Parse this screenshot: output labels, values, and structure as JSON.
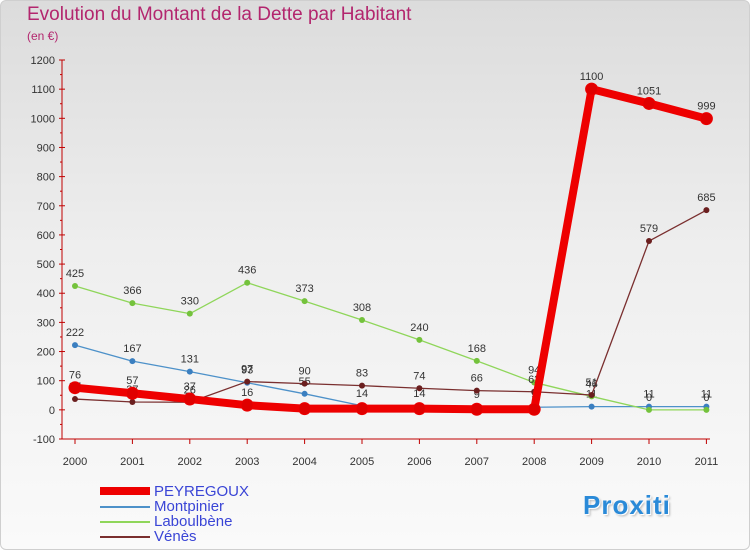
{
  "title": "Evolution du Montant de la Dette par Habitant",
  "subtitle": "(en €)",
  "logo": "Proxiti",
  "chart_data": {
    "type": "line",
    "title": "Evolution du Montant de la Dette par Habitant",
    "subtitle": "(en €)",
    "categories": [
      "2000",
      "2001",
      "2002",
      "2003",
      "2004",
      "2005",
      "2006",
      "2007",
      "2008",
      "2009",
      "2010",
      "2011"
    ],
    "ylim": [
      -100,
      1200
    ],
    "yticks": [
      -100,
      0,
      100,
      200,
      300,
      400,
      500,
      600,
      700,
      800,
      900,
      1000,
      1100,
      1200
    ],
    "grid": false,
    "legend_position": "bottom-left",
    "series": [
      {
        "name": "Montpinier",
        "color": "#4d91c9",
        "dot": "#3b7fc0",
        "width": 1.3,
        "values": [
          222,
          167,
          131,
          93,
          55,
          14,
          14,
          9,
          9,
          11,
          11,
          11
        ],
        "labels": [
          "222",
          "167",
          "131",
          "93",
          "55",
          "14",
          "14",
          "9",
          "9",
          "11",
          "11",
          "11"
        ]
      },
      {
        "name": "Laboulbène",
        "color": "#8fd65a",
        "dot": "#74c23c",
        "width": 1.3,
        "values": [
          425,
          366,
          330,
          436,
          373,
          308,
          240,
          168,
          94,
          46,
          0,
          0
        ],
        "labels": [
          "425",
          "366",
          "330",
          "436",
          "373",
          "308",
          "240",
          "168",
          "94",
          "46",
          "0",
          "0"
        ]
      },
      {
        "name": "Vénès",
        "color": "#7a2f2f",
        "dot": "#6b1f1f",
        "width": 1.3,
        "values": [
          37,
          27,
          26,
          97,
          90,
          83,
          74,
          66,
          62,
          51,
          579,
          685
        ],
        "labels": [
          "37",
          "27",
          "26",
          "97",
          "90",
          "83",
          "74",
          "66",
          "62",
          "51",
          "579",
          "685"
        ]
      },
      {
        "name": "PEYREGOUX",
        "color": "#ee0000",
        "dot": "#e00000",
        "width": 8,
        "values": [
          76,
          57,
          37,
          16,
          4,
          4,
          4,
          2,
          2,
          1100,
          1051,
          999
        ],
        "labels": [
          "76",
          "57",
          "37",
          "16",
          "",
          "",
          "",
          "",
          "",
          "1100",
          "1051",
          "999"
        ]
      }
    ]
  },
  "legend": [
    {
      "name": "PEYREGOUX",
      "color": "#ee0000",
      "width": 8
    },
    {
      "name": "Montpinier",
      "color": "#4d91c9",
      "width": 2
    },
    {
      "name": "Laboulbène",
      "color": "#8fd65a",
      "width": 2
    },
    {
      "name": "Vénès",
      "color": "#7a2f2f",
      "width": 2
    }
  ]
}
